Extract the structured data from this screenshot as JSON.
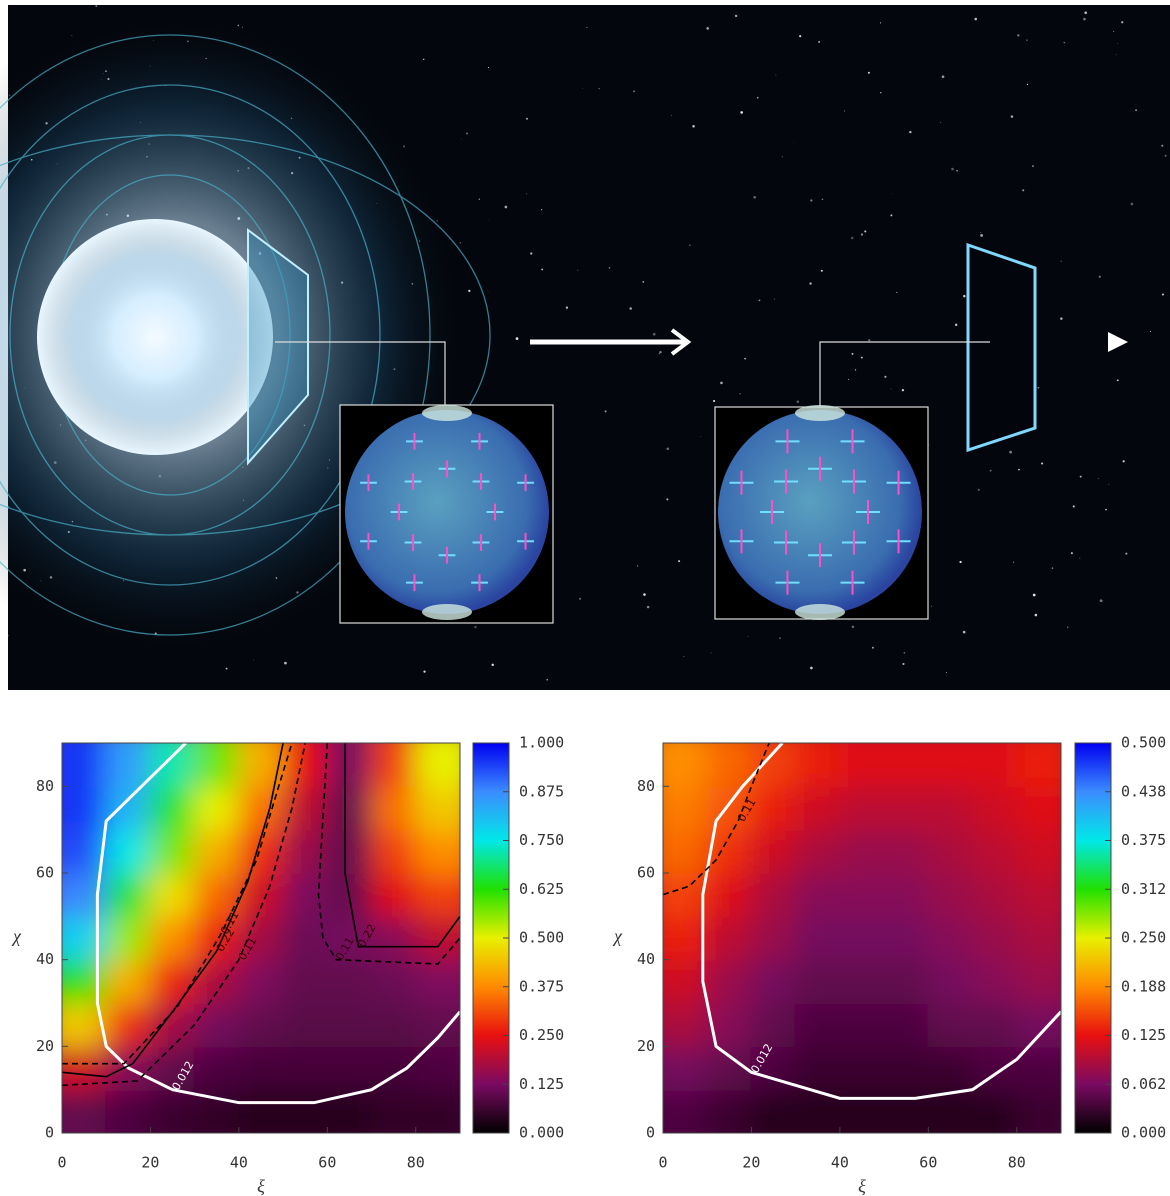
{
  "chart_data": [
    {
      "type": "heatmap",
      "xlabel": "ξ",
      "ylabel": "χ",
      "xlim": [
        0,
        90
      ],
      "ylim": [
        0,
        90
      ],
      "xticks": [
        0,
        20,
        40,
        60,
        80
      ],
      "yticks": [
        0,
        20,
        40,
        60,
        80
      ],
      "x": [
        5,
        15,
        25,
        35,
        45,
        55,
        65,
        75,
        85
      ],
      "y": [
        5,
        15,
        25,
        35,
        45,
        55,
        65,
        75,
        85
      ],
      "z": [
        [
          0.1,
          0.08,
          0.06,
          0.05,
          0.04,
          0.04,
          0.04,
          0.05,
          0.05
        ],
        [
          0.22,
          0.14,
          0.1,
          0.08,
          0.07,
          0.07,
          0.07,
          0.07,
          0.08
        ],
        [
          0.45,
          0.28,
          0.17,
          0.12,
          0.1,
          0.09,
          0.09,
          0.09,
          0.1
        ],
        [
          0.62,
          0.42,
          0.27,
          0.18,
          0.13,
          0.1,
          0.1,
          0.11,
          0.13
        ],
        [
          0.78,
          0.55,
          0.38,
          0.26,
          0.17,
          0.11,
          0.12,
          0.14,
          0.2
        ],
        [
          0.88,
          0.66,
          0.48,
          0.34,
          0.22,
          0.13,
          0.1,
          0.24,
          0.3
        ],
        [
          0.93,
          0.75,
          0.57,
          0.42,
          0.28,
          0.16,
          0.1,
          0.3,
          0.38
        ],
        [
          0.95,
          0.82,
          0.65,
          0.5,
          0.35,
          0.2,
          0.1,
          0.35,
          0.45
        ],
        [
          0.95,
          0.85,
          0.72,
          0.58,
          0.42,
          0.25,
          0.12,
          0.3,
          0.5
        ]
      ],
      "clim": [
        0,
        1
      ],
      "colormap": [
        "#000000",
        "#7a0a62",
        "#e81010",
        "#ff8a00",
        "#e8f000",
        "#20e000",
        "#00e8e8",
        "#3c8cff",
        "#0000f0"
      ],
      "cticks": [
        {
          "value": 0,
          "label": "0.000"
        },
        {
          "value": 0.125,
          "label": "0.125"
        },
        {
          "value": 0.25,
          "label": "0.250"
        },
        {
          "value": 0.375,
          "label": "0.375"
        },
        {
          "value": 0.5,
          "label": "0.500"
        },
        {
          "value": 0.625,
          "label": "0.625"
        },
        {
          "value": 0.75,
          "label": "0.750"
        },
        {
          "value": 0.875,
          "label": "0.875"
        },
        {
          "value": 1,
          "label": "1.000"
        }
      ],
      "contours": [
        {
          "label": "0.012",
          "color": "#ffffff",
          "style": "solid",
          "x": [
            28,
            18,
            10,
            8,
            8,
            10,
            15,
            25,
            40,
            57,
            70,
            78,
            85,
            90
          ],
          "y": [
            90,
            80,
            72,
            55,
            30,
            20,
            15,
            10,
            7,
            7,
            10,
            15,
            22,
            28
          ]
        },
        {
          "label": "0.22",
          "color": "#000000",
          "style": "solid",
          "x": [
            0,
            10,
            16,
            25,
            35,
            42,
            47,
            50
          ],
          "y": [
            14,
            13,
            16,
            28,
            42,
            58,
            75,
            90
          ]
        },
        {
          "label": "0.22",
          "color": "#000000",
          "style": "solid",
          "x": [
            64,
            64,
            67,
            85,
            90
          ],
          "y": [
            90,
            60,
            43,
            43,
            50
          ]
        },
        {
          "label": "0.11",
          "color": "#000000",
          "style": "dashed",
          "x": [
            0,
            14,
            26,
            36,
            44,
            49,
            52
          ],
          "y": [
            16,
            16,
            29,
            46,
            63,
            80,
            90
          ]
        },
        {
          "label": "0.11",
          "color": "#000000",
          "style": "dashed",
          "x": [
            0,
            17,
            30,
            40,
            47,
            52,
            55
          ],
          "y": [
            11,
            12,
            25,
            40,
            57,
            75,
            90
          ]
        },
        {
          "label": "0.11",
          "color": "#000000",
          "style": "dashed",
          "x": [
            60,
            58,
            59,
            62,
            85,
            90
          ],
          "y": [
            90,
            55,
            45,
            40,
            39,
            45
          ]
        }
      ]
    },
    {
      "type": "heatmap",
      "xlabel": "ξ",
      "ylabel": "χ",
      "xlim": [
        0,
        90
      ],
      "ylim": [
        0,
        90
      ],
      "xticks": [
        0,
        20,
        40,
        60,
        80
      ],
      "yticks": [
        0,
        20,
        40,
        60,
        80
      ],
      "x": [
        5,
        15,
        25,
        35,
        45,
        55,
        65,
        75,
        85
      ],
      "y": [
        5,
        15,
        25,
        35,
        45,
        55,
        65,
        75,
        85
      ],
      "z": [
        [
          0.04,
          0.03,
          0.02,
          0.02,
          0.02,
          0.02,
          0.02,
          0.02,
          0.03
        ],
        [
          0.06,
          0.05,
          0.04,
          0.03,
          0.03,
          0.03,
          0.03,
          0.04,
          0.04
        ],
        [
          0.09,
          0.07,
          0.05,
          0.04,
          0.04,
          0.04,
          0.05,
          0.05,
          0.06
        ],
        [
          0.11,
          0.08,
          0.06,
          0.05,
          0.05,
          0.05,
          0.06,
          0.07,
          0.08
        ],
        [
          0.13,
          0.1,
          0.08,
          0.06,
          0.06,
          0.06,
          0.07,
          0.08,
          0.09
        ],
        [
          0.15,
          0.12,
          0.09,
          0.07,
          0.07,
          0.07,
          0.08,
          0.09,
          0.1
        ],
        [
          0.17,
          0.14,
          0.11,
          0.09,
          0.08,
          0.08,
          0.09,
          0.1,
          0.11
        ],
        [
          0.18,
          0.16,
          0.13,
          0.11,
          0.1,
          0.1,
          0.1,
          0.11,
          0.12
        ],
        [
          0.19,
          0.17,
          0.15,
          0.13,
          0.12,
          0.12,
          0.12,
          0.12,
          0.13
        ]
      ],
      "clim": [
        0,
        0.5
      ],
      "colormap": [
        "#000000",
        "#7a0a62",
        "#e81010",
        "#ff8a00",
        "#e8f000",
        "#20e000",
        "#00e8e8",
        "#3c8cff",
        "#0000f0"
      ],
      "cticks": [
        {
          "value": 0,
          "label": "0.000"
        },
        {
          "value": 0.0625,
          "label": "0.062"
        },
        {
          "value": 0.125,
          "label": "0.125"
        },
        {
          "value": 0.1875,
          "label": "0.188"
        },
        {
          "value": 0.25,
          "label": "0.250"
        },
        {
          "value": 0.3125,
          "label": "0.312"
        },
        {
          "value": 0.375,
          "label": "0.375"
        },
        {
          "value": 0.4375,
          "label": "0.438"
        },
        {
          "value": 0.5,
          "label": "0.500"
        }
      ],
      "contours": [
        {
          "label": "0.012",
          "color": "#ffffff",
          "style": "solid",
          "x": [
            27,
            18,
            12,
            9,
            9,
            12,
            20,
            40,
            57,
            70,
            80,
            90
          ],
          "y": [
            90,
            80,
            72,
            55,
            35,
            20,
            14,
            8,
            8,
            10,
            17,
            28
          ]
        },
        {
          "label": "0.11",
          "color": "#000000",
          "style": "dashed",
          "x": [
            0,
            6,
            12,
            17,
            20,
            24
          ],
          "y": [
            55,
            57,
            63,
            72,
            80,
            90
          ]
        }
      ]
    }
  ]
}
